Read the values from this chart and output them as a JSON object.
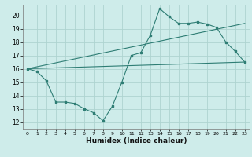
{
  "xlabel": "Humidex (Indice chaleur)",
  "ylabel": "",
  "xlim": [
    -0.5,
    23.5
  ],
  "ylim": [
    11.5,
    20.8
  ],
  "xticks": [
    0,
    1,
    2,
    3,
    4,
    5,
    6,
    7,
    8,
    9,
    10,
    11,
    12,
    13,
    14,
    15,
    16,
    17,
    18,
    19,
    20,
    21,
    22,
    23
  ],
  "yticks": [
    12,
    13,
    14,
    15,
    16,
    17,
    18,
    19,
    20
  ],
  "bg_color": "#ceecea",
  "line_color": "#2e7d74",
  "grid_color": "#aed4d0",
  "line1_x": [
    0,
    1,
    2,
    3,
    4,
    5,
    6,
    7,
    8,
    9,
    10,
    11,
    12,
    13,
    14,
    15,
    16,
    17,
    18,
    19,
    20,
    21,
    22,
    23
  ],
  "line1_y": [
    16.0,
    15.8,
    15.1,
    13.5,
    13.5,
    13.4,
    13.0,
    12.7,
    12.1,
    13.2,
    15.0,
    17.0,
    17.2,
    18.5,
    20.5,
    19.9,
    19.4,
    19.4,
    19.5,
    19.35,
    19.1,
    18.0,
    17.3,
    16.5
  ],
  "line2_x": [
    0,
    23
  ],
  "line2_y": [
    16.0,
    16.5
  ],
  "line3_x": [
    0,
    23
  ],
  "line3_y": [
    16.0,
    19.4
  ]
}
